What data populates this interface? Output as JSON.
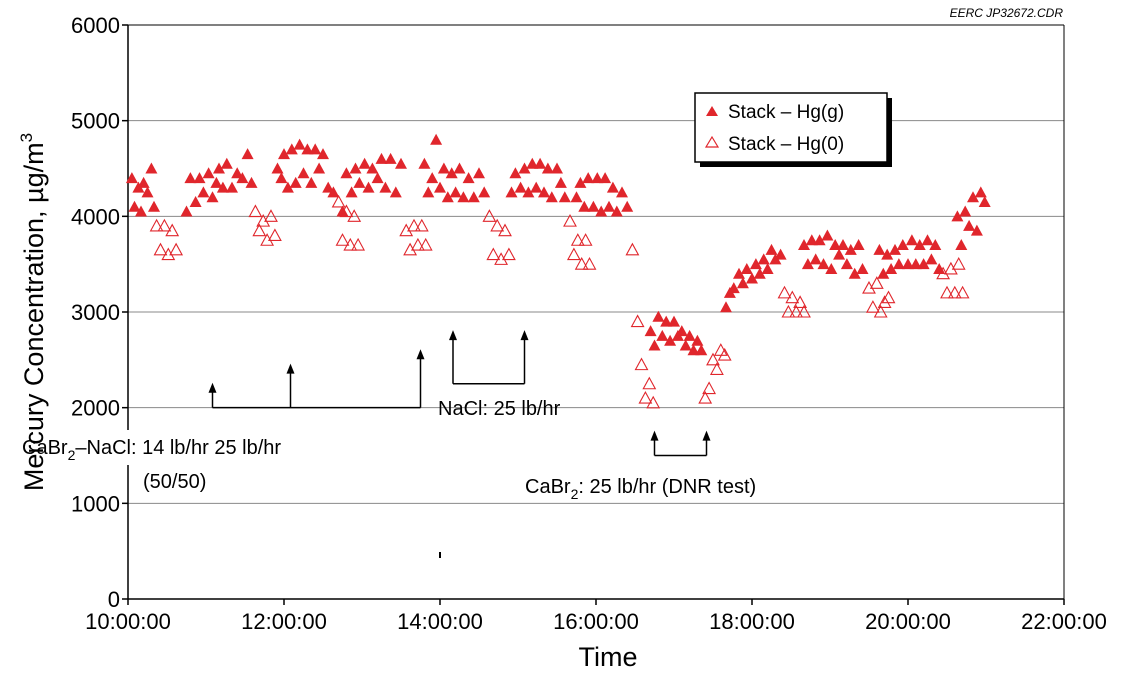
{
  "chart_data": {
    "type": "scatter",
    "xlabel": "Time",
    "ylabel": "Mercury Concentration, µg/m",
    "ylabel_sup": "3",
    "credit": "EERC JP32672.CDR",
    "x_tick_labels": [
      "10:00:00",
      "12:00:00",
      "14:00:00",
      "16:00:00",
      "18:00:00",
      "20:00:00",
      "22:00:00"
    ],
    "y_tick_labels": [
      "0",
      "1000",
      "2000",
      "3000",
      "4000",
      "5000",
      "6000"
    ],
    "xlim": [
      "10:00",
      "22:00"
    ],
    "ylim": [
      0,
      6000
    ],
    "grid": "horizontal",
    "legend_position": "top-right",
    "series": [
      {
        "name": "Stack – Hg(g)",
        "marker": "filled-triangle",
        "color": "#e0262c",
        "points": [
          [
            "10:03",
            4400
          ],
          [
            "10:05",
            4100
          ],
          [
            "10:08",
            4300
          ],
          [
            "10:10",
            4050
          ],
          [
            "10:12",
            4350
          ],
          [
            "10:15",
            4250
          ],
          [
            "10:18",
            4500
          ],
          [
            "10:20",
            4100
          ],
          [
            "10:45",
            4050
          ],
          [
            "10:48",
            4400
          ],
          [
            "10:52",
            4150
          ],
          [
            "10:55",
            4400
          ],
          [
            "10:58",
            4250
          ],
          [
            "11:02",
            4450
          ],
          [
            "11:05",
            4200
          ],
          [
            "11:08",
            4350
          ],
          [
            "11:10",
            4500
          ],
          [
            "11:13",
            4300
          ],
          [
            "11:16",
            4550
          ],
          [
            "11:20",
            4300
          ],
          [
            "11:24",
            4450
          ],
          [
            "11:28",
            4400
          ],
          [
            "11:32",
            4650
          ],
          [
            "11:35",
            4350
          ],
          [
            "11:55",
            4500
          ],
          [
            "11:58",
            4400
          ],
          [
            "12:00",
            4650
          ],
          [
            "12:03",
            4300
          ],
          [
            "12:06",
            4700
          ],
          [
            "12:09",
            4350
          ],
          [
            "12:12",
            4750
          ],
          [
            "12:15",
            4450
          ],
          [
            "12:18",
            4700
          ],
          [
            "12:21",
            4350
          ],
          [
            "12:24",
            4700
          ],
          [
            "12:27",
            4500
          ],
          [
            "12:30",
            4650
          ],
          [
            "12:34",
            4300
          ],
          [
            "12:38",
            4250
          ],
          [
            "12:45",
            4050
          ],
          [
            "12:48",
            4450
          ],
          [
            "12:52",
            4250
          ],
          [
            "12:55",
            4500
          ],
          [
            "12:58",
            4350
          ],
          [
            "13:02",
            4550
          ],
          [
            "13:05",
            4300
          ],
          [
            "13:08",
            4500
          ],
          [
            "13:12",
            4400
          ],
          [
            "13:15",
            4600
          ],
          [
            "13:18",
            4300
          ],
          [
            "13:22",
            4600
          ],
          [
            "13:26",
            4250
          ],
          [
            "13:30",
            4550
          ],
          [
            "13:48",
            4550
          ],
          [
            "13:51",
            4250
          ],
          [
            "13:54",
            4400
          ],
          [
            "13:57",
            4800
          ],
          [
            "14:00",
            4300
          ],
          [
            "14:03",
            4500
          ],
          [
            "14:06",
            4200
          ],
          [
            "14:09",
            4450
          ],
          [
            "14:12",
            4250
          ],
          [
            "14:15",
            4500
          ],
          [
            "14:18",
            4200
          ],
          [
            "14:22",
            4400
          ],
          [
            "14:26",
            4200
          ],
          [
            "14:30",
            4450
          ],
          [
            "14:34",
            4250
          ],
          [
            "14:55",
            4250
          ],
          [
            "14:58",
            4450
          ],
          [
            "15:02",
            4300
          ],
          [
            "15:05",
            4500
          ],
          [
            "15:08",
            4250
          ],
          [
            "15:11",
            4550
          ],
          [
            "15:14",
            4300
          ],
          [
            "15:17",
            4550
          ],
          [
            "15:20",
            4250
          ],
          [
            "15:23",
            4500
          ],
          [
            "15:26",
            4200
          ],
          [
            "15:30",
            4500
          ],
          [
            "15:33",
            4350
          ],
          [
            "15:36",
            4200
          ],
          [
            "15:45",
            4200
          ],
          [
            "15:48",
            4350
          ],
          [
            "15:51",
            4100
          ],
          [
            "15:54",
            4400
          ],
          [
            "15:58",
            4100
          ],
          [
            "16:01",
            4400
          ],
          [
            "16:04",
            4050
          ],
          [
            "16:07",
            4400
          ],
          [
            "16:10",
            4100
          ],
          [
            "16:13",
            4300
          ],
          [
            "16:16",
            4050
          ],
          [
            "16:20",
            4250
          ],
          [
            "16:24",
            4100
          ],
          [
            "16:42",
            2800
          ],
          [
            "16:45",
            2650
          ],
          [
            "16:48",
            2950
          ],
          [
            "16:51",
            2750
          ],
          [
            "16:54",
            2900
          ],
          [
            "16:57",
            2700
          ],
          [
            "17:00",
            2900
          ],
          [
            "17:03",
            2750
          ],
          [
            "17:06",
            2800
          ],
          [
            "17:09",
            2650
          ],
          [
            "17:12",
            2750
          ],
          [
            "17:15",
            2600
          ],
          [
            "17:18",
            2700
          ],
          [
            "17:21",
            2600
          ],
          [
            "17:40",
            3050
          ],
          [
            "17:43",
            3200
          ],
          [
            "17:46",
            3250
          ],
          [
            "17:50",
            3400
          ],
          [
            "17:53",
            3300
          ],
          [
            "17:56",
            3450
          ],
          [
            "18:00",
            3350
          ],
          [
            "18:03",
            3500
          ],
          [
            "18:06",
            3400
          ],
          [
            "18:09",
            3550
          ],
          [
            "18:12",
            3450
          ],
          [
            "18:15",
            3650
          ],
          [
            "18:18",
            3550
          ],
          [
            "18:22",
            3600
          ],
          [
            "18:40",
            3700
          ],
          [
            "18:43",
            3500
          ],
          [
            "18:46",
            3750
          ],
          [
            "18:49",
            3550
          ],
          [
            "18:52",
            3750
          ],
          [
            "18:55",
            3500
          ],
          [
            "18:58",
            3800
          ],
          [
            "19:01",
            3450
          ],
          [
            "19:04",
            3700
          ],
          [
            "19:07",
            3600
          ],
          [
            "19:10",
            3700
          ],
          [
            "19:13",
            3500
          ],
          [
            "19:16",
            3650
          ],
          [
            "19:19",
            3400
          ],
          [
            "19:22",
            3700
          ],
          [
            "19:25",
            3450
          ],
          [
            "19:38",
            3650
          ],
          [
            "19:41",
            3400
          ],
          [
            "19:44",
            3600
          ],
          [
            "19:47",
            3450
          ],
          [
            "19:50",
            3650
          ],
          [
            "19:53",
            3500
          ],
          [
            "19:56",
            3700
          ],
          [
            "20:00",
            3500
          ],
          [
            "20:03",
            3750
          ],
          [
            "20:06",
            3500
          ],
          [
            "20:09",
            3700
          ],
          [
            "20:12",
            3500
          ],
          [
            "20:15",
            3750
          ],
          [
            "20:18",
            3550
          ],
          [
            "20:21",
            3700
          ],
          [
            "20:24",
            3450
          ],
          [
            "20:38",
            4000
          ],
          [
            "20:41",
            3700
          ],
          [
            "20:44",
            4050
          ],
          [
            "20:47",
            3900
          ],
          [
            "20:50",
            4200
          ],
          [
            "20:53",
            3850
          ],
          [
            "20:56",
            4250
          ],
          [
            "20:59",
            4150
          ]
        ]
      },
      {
        "name": "Stack – Hg(0)",
        "marker": "open-triangle",
        "color": "#e0262c",
        "points": [
          [
            "10:22",
            3900
          ],
          [
            "10:25",
            3650
          ],
          [
            "10:28",
            3900
          ],
          [
            "10:31",
            3600
          ],
          [
            "10:34",
            3850
          ],
          [
            "10:37",
            3650
          ],
          [
            "11:38",
            4050
          ],
          [
            "11:41",
            3850
          ],
          [
            "11:44",
            3950
          ],
          [
            "11:47",
            3750
          ],
          [
            "11:50",
            4000
          ],
          [
            "11:53",
            3800
          ],
          [
            "12:42",
            4150
          ],
          [
            "12:45",
            3750
          ],
          [
            "12:48",
            4050
          ],
          [
            "12:51",
            3700
          ],
          [
            "12:54",
            4000
          ],
          [
            "12:57",
            3700
          ],
          [
            "13:34",
            3850
          ],
          [
            "13:37",
            3650
          ],
          [
            "13:40",
            3900
          ],
          [
            "13:43",
            3700
          ],
          [
            "13:46",
            3900
          ],
          [
            "13:49",
            3700
          ],
          [
            "14:38",
            4000
          ],
          [
            "14:41",
            3600
          ],
          [
            "14:44",
            3900
          ],
          [
            "14:47",
            3550
          ],
          [
            "14:50",
            3850
          ],
          [
            "14:53",
            3600
          ],
          [
            "15:40",
            3950
          ],
          [
            "15:43",
            3600
          ],
          [
            "15:46",
            3750
          ],
          [
            "15:49",
            3500
          ],
          [
            "15:52",
            3750
          ],
          [
            "15:55",
            3500
          ],
          [
            "16:28",
            3650
          ],
          [
            "16:32",
            2900
          ],
          [
            "16:35",
            2450
          ],
          [
            "16:38",
            2100
          ],
          [
            "16:41",
            2250
          ],
          [
            "16:44",
            2050
          ],
          [
            "17:24",
            2100
          ],
          [
            "17:27",
            2200
          ],
          [
            "17:30",
            2500
          ],
          [
            "17:33",
            2400
          ],
          [
            "17:36",
            2600
          ],
          [
            "17:39",
            2550
          ],
          [
            "18:25",
            3200
          ],
          [
            "18:28",
            3000
          ],
          [
            "18:31",
            3150
          ],
          [
            "18:34",
            3000
          ],
          [
            "18:37",
            3100
          ],
          [
            "18:40",
            3000
          ],
          [
            "19:30",
            3250
          ],
          [
            "19:33",
            3050
          ],
          [
            "19:36",
            3300
          ],
          [
            "19:39",
            3000
          ],
          [
            "19:42",
            3100
          ],
          [
            "19:45",
            3150
          ],
          [
            "20:27",
            3400
          ],
          [
            "20:30",
            3200
          ],
          [
            "20:33",
            3450
          ],
          [
            "20:36",
            3200
          ],
          [
            "20:39",
            3500
          ],
          [
            "20:42",
            3200
          ]
        ]
      }
    ],
    "annotations": {
      "cabr2_nacl": {
        "label_a": "CaBr",
        "sub": "2",
        "label_b": "–NaCl: 14 lb/hr  25 lb/hr",
        "label_c": "(50/50)",
        "arrows": [
          {
            "t": "11:05",
            "from": 2000,
            "to": 2250
          },
          {
            "t": "12:05",
            "from": 2000,
            "to": 2450
          },
          {
            "t": "13:45",
            "from": 2000,
            "to": 2600
          }
        ]
      },
      "nacl": {
        "label": "NaCl: 25 lb/hr",
        "arrows": [
          {
            "t": "14:10",
            "from": 2250,
            "to": 2800
          },
          {
            "t": "15:05",
            "from": 2250,
            "to": 2800
          }
        ]
      },
      "cabr2": {
        "label_a": "CaBr",
        "sub": "2",
        "label_b": ": 25 lb/hr (DNR test)",
        "arrows": [
          {
            "t": "16:45",
            "from": 1500,
            "to": 1750
          },
          {
            "t": "17:25",
            "from": 1500,
            "to": 1750
          }
        ]
      }
    }
  }
}
